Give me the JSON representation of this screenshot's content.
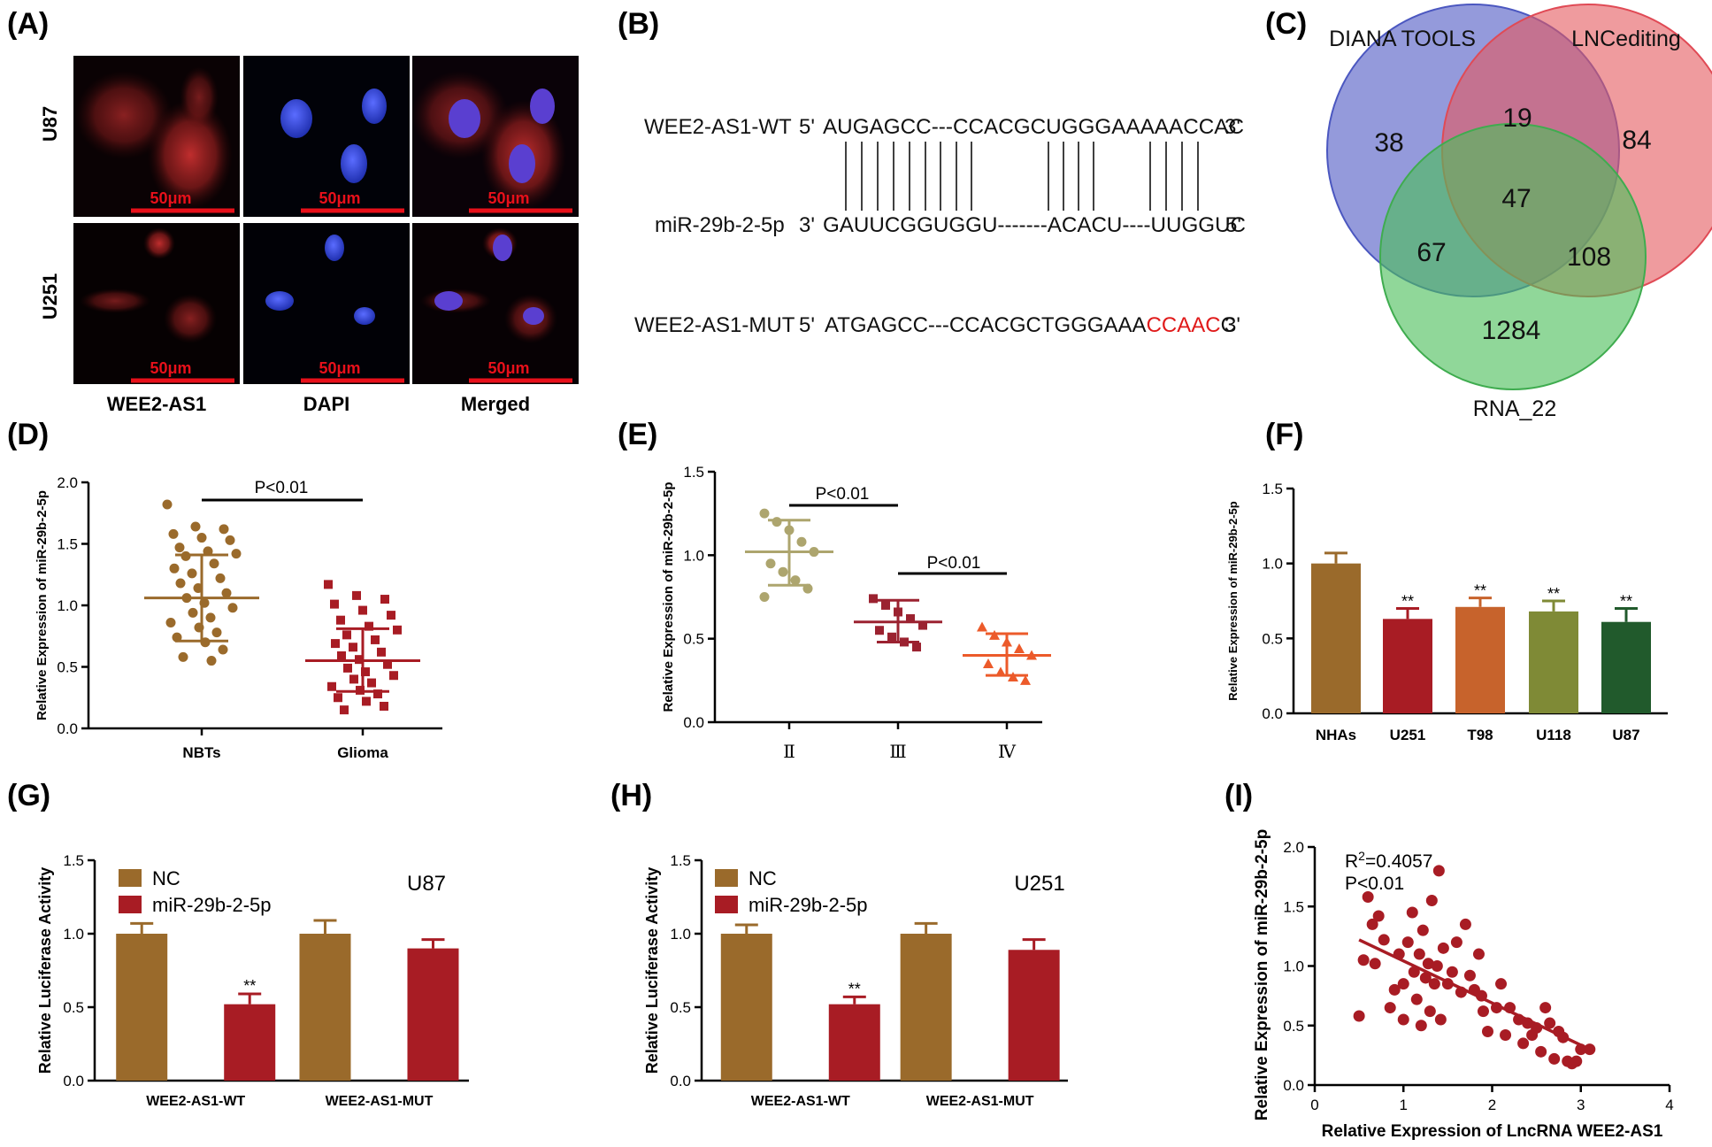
{
  "colors": {
    "brown": "#9a6a2b",
    "red": "#a81c24",
    "orange": "#c7632c",
    "olive": "#7f8a36",
    "darkgreen": "#215a2c",
    "tan": "#ada56e",
    "maroon": "#9b2230",
    "orangered": "#ec5a2a",
    "microRed": "#d1261e",
    "nucleusBlue": "#3444d6"
  },
  "panelA": {
    "label": "(A)",
    "rows": [
      "U87",
      "U251"
    ],
    "columns": [
      "WEE2-AS1",
      "DAPI",
      "Merged"
    ],
    "scale": "50μm"
  },
  "panelB": {
    "label": "(B)",
    "seqs": [
      {
        "name": "WEE2-AS1-WT",
        "p5": "5'",
        "seq": "AUGAGCC---CCACGCUGGGAAAAACCAC",
        "p3": "3'"
      },
      {
        "name": "miR-29b-2-5p",
        "p5": "3'",
        "seq": "GAUUCGGUGGU-------ACACU----UUGGUC",
        "p3": "5'"
      },
      {
        "name": "WEE2-AS1-MUT",
        "p5": "5'",
        "seq": "ATGAGCC---CCACGCTGGGAAA",
        "mut": "CCAAC",
        "tail": "C",
        "p3": "3'"
      }
    ]
  },
  "panelC": {
    "label": "(C)",
    "sets": [
      "DIANA TOOLS",
      "LNCediting",
      "RNA_22"
    ],
    "regions": {
      "diana_only": "38",
      "lnc_only": "84",
      "rna_only": "1284",
      "diana_lnc": "19",
      "diana_rna": "67",
      "lnc_rna": "108",
      "all": "47"
    }
  },
  "chart_data": [
    {
      "panel": "(D)",
      "type": "scatter",
      "ylabel": "Relative Expression of miR-29b-2-5p",
      "ylim": [
        0,
        2.0
      ],
      "yticks": [
        "0.0",
        "0.5",
        "1.0",
        "1.5",
        "2.0"
      ],
      "categories": [
        "NBTs",
        "Glioma"
      ],
      "groups": [
        {
          "name": "NBTs",
          "mean": 1.06,
          "sd_low": 0.71,
          "sd_high": 1.41,
          "points": [
            1.82,
            1.64,
            1.62,
            1.58,
            1.55,
            1.53,
            1.47,
            1.44,
            1.42,
            1.4,
            1.34,
            1.3,
            1.26,
            1.22,
            1.18,
            1.14,
            1.1,
            1.06,
            1.02,
            0.98,
            0.94,
            0.9,
            0.86,
            0.82,
            0.78,
            0.74,
            0.7,
            0.64,
            0.58,
            0.55
          ]
        },
        {
          "name": "Glioma",
          "mean": 0.55,
          "sd_low": 0.3,
          "sd_high": 0.81,
          "points": [
            1.17,
            1.08,
            1.05,
            1.01,
            0.96,
            0.92,
            0.88,
            0.83,
            0.8,
            0.76,
            0.72,
            0.69,
            0.66,
            0.62,
            0.59,
            0.56,
            0.52,
            0.49,
            0.46,
            0.43,
            0.4,
            0.37,
            0.34,
            0.31,
            0.28,
            0.25,
            0.22,
            0.18,
            0.15
          ]
        }
      ],
      "annotation": "P<0.01"
    },
    {
      "panel": "(E)",
      "type": "scatter",
      "ylabel": "Relative Expression of miR-29b-2-5p",
      "ylim": [
        0,
        1.5
      ],
      "yticks": [
        "0.0",
        "0.5",
        "1.0",
        "1.5"
      ],
      "categories": [
        "Ⅱ",
        "Ⅲ",
        "Ⅳ"
      ],
      "groups": [
        {
          "name": "Ⅱ",
          "mean": 1.02,
          "sd_low": 0.82,
          "sd_high": 1.21,
          "points": [
            1.25,
            1.2,
            1.15,
            1.08,
            1.02,
            0.95,
            0.9,
            0.85,
            0.8,
            0.75
          ]
        },
        {
          "name": "Ⅲ",
          "mean": 0.6,
          "sd_low": 0.48,
          "sd_high": 0.73,
          "points": [
            0.74,
            0.7,
            0.66,
            0.62,
            0.58,
            0.55,
            0.51,
            0.48,
            0.45
          ]
        },
        {
          "name": "Ⅳ",
          "mean": 0.4,
          "sd_low": 0.28,
          "sd_high": 0.53,
          "points": [
            0.57,
            0.52,
            0.48,
            0.44,
            0.4,
            0.35,
            0.3,
            0.27,
            0.25
          ]
        }
      ],
      "annotations": [
        "P<0.01",
        "P<0.01"
      ]
    },
    {
      "panel": "(F)",
      "type": "bar",
      "ylabel": "Relative Expression of miR-29b-2-5p",
      "ylim": [
        0,
        1.5
      ],
      "yticks": [
        "0.0",
        "0.5",
        "1.0",
        "1.5"
      ],
      "categories": [
        "NHAs",
        "U251",
        "T98",
        "U118",
        "U87"
      ],
      "values": [
        1.0,
        0.63,
        0.71,
        0.68,
        0.61
      ],
      "errors": [
        0.07,
        0.07,
        0.06,
        0.07,
        0.09
      ],
      "stars": [
        "",
        "**",
        "**",
        "**",
        "**"
      ]
    },
    {
      "panel": "(G)",
      "type": "bar",
      "title": "U87",
      "ylabel": "Relative Luciferase Activity",
      "ylim": [
        0,
        1.5
      ],
      "yticks": [
        "0.0",
        "0.5",
        "1.0",
        "1.5"
      ],
      "categories": [
        "WEE2-AS1-WT",
        "WEE2-AS1-MUT"
      ],
      "series": [
        {
          "name": "NC",
          "values": [
            1.0,
            1.0
          ],
          "errors": [
            0.07,
            0.09
          ]
        },
        {
          "name": "miR-29b-2-5p",
          "values": [
            0.52,
            0.9
          ],
          "errors": [
            0.07,
            0.06
          ]
        }
      ],
      "stars": "**"
    },
    {
      "panel": "(H)",
      "type": "bar",
      "title": "U251",
      "ylabel": "Relative Luciferase Activity",
      "ylim": [
        0,
        1.5
      ],
      "yticks": [
        "0.0",
        "0.5",
        "1.0",
        "1.5"
      ],
      "categories": [
        "WEE2-AS1-WT",
        "WEE2-AS1-MUT"
      ],
      "series": [
        {
          "name": "NC",
          "values": [
            1.0,
            1.0
          ],
          "errors": [
            0.06,
            0.07
          ]
        },
        {
          "name": "miR-29b-2-5p",
          "values": [
            0.52,
            0.89
          ],
          "errors": [
            0.05,
            0.07
          ]
        }
      ],
      "stars": "**"
    },
    {
      "panel": "(I)",
      "type": "scatter",
      "xlabel": "Relative Expression of LncRNA WEE2-AS1",
      "ylabel": "Relative Expression of miR-29b-2-5p",
      "xlim": [
        0,
        4
      ],
      "ylim": [
        0,
        2.0
      ],
      "xticks": [
        "0",
        "1",
        "2",
        "3",
        "4"
      ],
      "yticks": [
        "0.0",
        "0.5",
        "1.0",
        "1.5",
        "2.0"
      ],
      "r2_prefix": "R",
      "r2_sup": "2",
      "r2_value": "=0.4057",
      "pvalue": "P<0.01",
      "fit": [
        [
          0.5,
          1.22
        ],
        [
          3.1,
          0.3
        ]
      ],
      "points": [
        [
          0.5,
          0.58
        ],
        [
          0.55,
          1.05
        ],
        [
          0.6,
          1.58
        ],
        [
          0.65,
          1.35
        ],
        [
          0.68,
          1.02
        ],
        [
          0.72,
          1.42
        ],
        [
          0.78,
          1.22
        ],
        [
          0.85,
          0.65
        ],
        [
          0.9,
          0.8
        ],
        [
          0.95,
          1.1
        ],
        [
          1.0,
          0.85
        ],
        [
          1.0,
          0.55
        ],
        [
          1.05,
          1.2
        ],
        [
          1.1,
          1.45
        ],
        [
          1.12,
          0.95
        ],
        [
          1.15,
          0.72
        ],
        [
          1.18,
          1.1
        ],
        [
          1.2,
          0.5
        ],
        [
          1.22,
          1.3
        ],
        [
          1.25,
          0.9
        ],
        [
          1.28,
          1.02
        ],
        [
          1.3,
          0.62
        ],
        [
          1.32,
          1.55
        ],
        [
          1.35,
          0.85
        ],
        [
          1.38,
          1.0
        ],
        [
          1.4,
          1.8
        ],
        [
          1.42,
          0.55
        ],
        [
          1.45,
          1.15
        ],
        [
          1.5,
          0.85
        ],
        [
          1.55,
          0.95
        ],
        [
          1.6,
          1.2
        ],
        [
          1.65,
          0.78
        ],
        [
          1.7,
          1.35
        ],
        [
          1.75,
          0.92
        ],
        [
          1.8,
          0.8
        ],
        [
          1.85,
          1.1
        ],
        [
          1.88,
          0.75
        ],
        [
          1.9,
          0.62
        ],
        [
          1.95,
          0.45
        ],
        [
          2.05,
          0.65
        ],
        [
          2.1,
          0.85
        ],
        [
          2.15,
          0.42
        ],
        [
          2.2,
          0.65
        ],
        [
          2.3,
          0.55
        ],
        [
          2.35,
          0.35
        ],
        [
          2.4,
          0.52
        ],
        [
          2.45,
          0.42
        ],
        [
          2.5,
          0.48
        ],
        [
          2.55,
          0.28
        ],
        [
          2.6,
          0.65
        ],
        [
          2.65,
          0.52
        ],
        [
          2.7,
          0.22
        ],
        [
          2.75,
          0.45
        ],
        [
          2.8,
          0.4
        ],
        [
          2.85,
          0.2
        ],
        [
          2.9,
          0.18
        ],
        [
          2.95,
          0.2
        ],
        [
          3.0,
          0.3
        ],
        [
          3.1,
          0.3
        ]
      ]
    }
  ]
}
